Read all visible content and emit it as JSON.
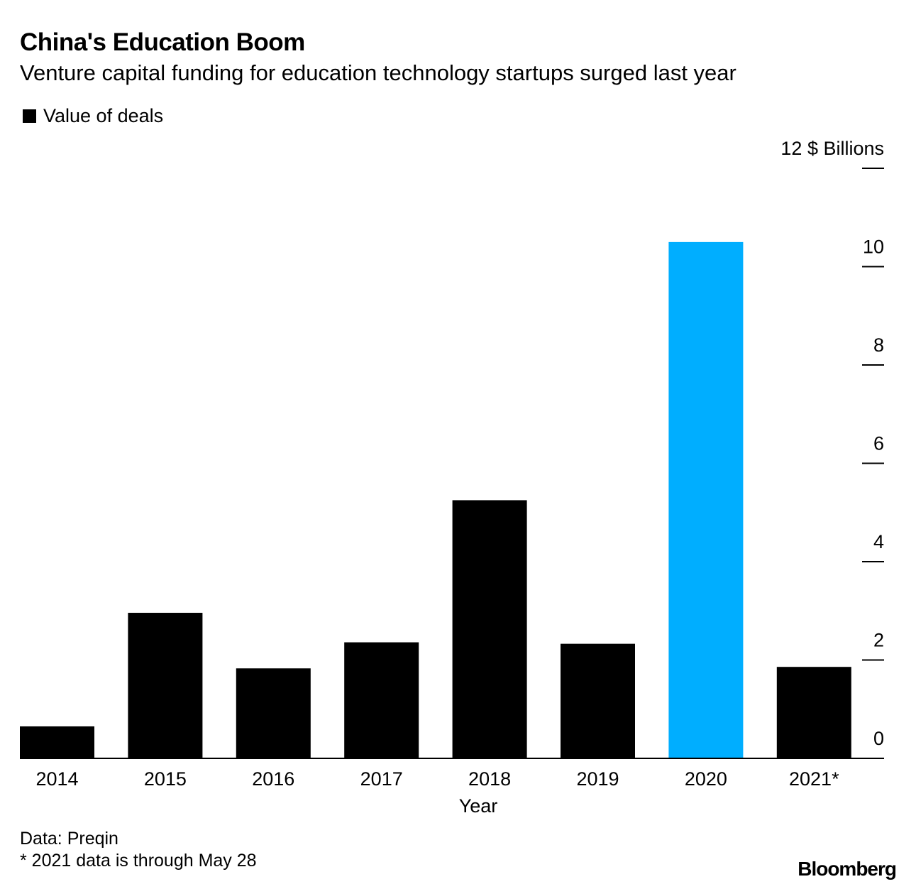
{
  "chart_data": {
    "type": "bar",
    "title": "China's Education Boom",
    "subtitle": "Venture capital funding for education technology startups surged last year",
    "legend": [
      "Value of deals"
    ],
    "categories": [
      "2014",
      "2015",
      "2016",
      "2017",
      "2018",
      "2019",
      "2020",
      "2021*"
    ],
    "series": [
      {
        "name": "Value of deals",
        "values": [
          0.65,
          2.96,
          1.83,
          2.36,
          5.25,
          2.33,
          10.5,
          1.86
        ]
      }
    ],
    "highlight_category": "2020",
    "colors": {
      "default": "#000000",
      "highlight": "#00aeff"
    },
    "xlabel": "Year",
    "ylabel": "$ Billions",
    "ylim": [
      0,
      12
    ],
    "yticks": [
      0,
      2,
      4,
      6,
      8,
      10,
      12
    ],
    "top_tick_label": "12 $ Billions",
    "yaxis_side": "right"
  },
  "footer": {
    "source": "Data: Preqin",
    "note": "* 2021 data is through May 28",
    "brand": "Bloomberg"
  }
}
